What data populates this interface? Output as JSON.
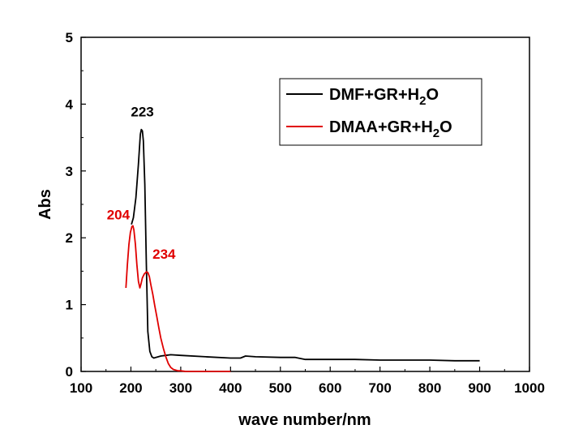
{
  "chart_data": {
    "type": "line",
    "xlabel": "wave number/nm",
    "ylabel": "Abs",
    "xlim": [
      100,
      1000
    ],
    "ylim": [
      0,
      5
    ],
    "xticks": [
      "100",
      "200",
      "300",
      "400",
      "500",
      "600",
      "700",
      "800",
      "900",
      "1000"
    ],
    "yticks": [
      "0",
      "1",
      "2",
      "3",
      "4",
      "5"
    ],
    "grid": false,
    "legend_position": "top-right",
    "legend": [
      {
        "main": "DMF+GR+H",
        "sub": "2",
        "tail": "O",
        "color": "#000000"
      },
      {
        "main": "DMAA+GR+H",
        "sub": "2",
        "tail": "O",
        "color": "#e00000"
      }
    ],
    "series": [
      {
        "name": "DMF+GR+H2O",
        "color": "#000000",
        "x": [
          201,
          205,
          210,
          215,
          219,
          221,
          223,
          225,
          228,
          231,
          234,
          238,
          242,
          246,
          250,
          260,
          270,
          280,
          300,
          350,
          400,
          420,
          430,
          450,
          500,
          530,
          550,
          600,
          650,
          700,
          750,
          800,
          850,
          900
        ],
        "y": [
          2.2,
          2.3,
          2.6,
          3.1,
          3.55,
          3.62,
          3.6,
          3.45,
          2.8,
          1.6,
          0.6,
          0.3,
          0.22,
          0.2,
          0.21,
          0.23,
          0.24,
          0.25,
          0.24,
          0.22,
          0.2,
          0.2,
          0.23,
          0.22,
          0.21,
          0.21,
          0.18,
          0.18,
          0.18,
          0.17,
          0.17,
          0.17,
          0.16,
          0.16
        ]
      },
      {
        "name": "DMAA+GR+H2O",
        "color": "#e00000",
        "x": [
          190,
          193,
          196,
          199,
          202,
          204,
          206,
          209,
          212,
          215,
          218,
          220,
          223,
          227,
          231,
          234,
          237,
          240,
          244,
          248,
          252,
          256,
          260,
          265,
          270,
          275,
          280,
          285,
          290,
          295,
          300,
          310,
          320,
          350,
          400
        ],
        "y": [
          1.25,
          1.6,
          1.9,
          2.08,
          2.17,
          2.18,
          2.12,
          1.9,
          1.6,
          1.35,
          1.25,
          1.3,
          1.4,
          1.46,
          1.49,
          1.48,
          1.42,
          1.3,
          1.15,
          0.98,
          0.82,
          0.65,
          0.5,
          0.35,
          0.22,
          0.12,
          0.06,
          0.03,
          0.02,
          0.01,
          0.01,
          0.0,
          0.0,
          0.0,
          0.0
        ]
      }
    ],
    "annotations": [
      {
        "text": "223",
        "x": 223,
        "y": 3.62,
        "color": "#000000"
      },
      {
        "text": "204",
        "x": 204,
        "y": 2.18,
        "color": "#e00000"
      },
      {
        "text": "234",
        "x": 234,
        "y": 1.49,
        "color": "#e00000"
      }
    ]
  }
}
